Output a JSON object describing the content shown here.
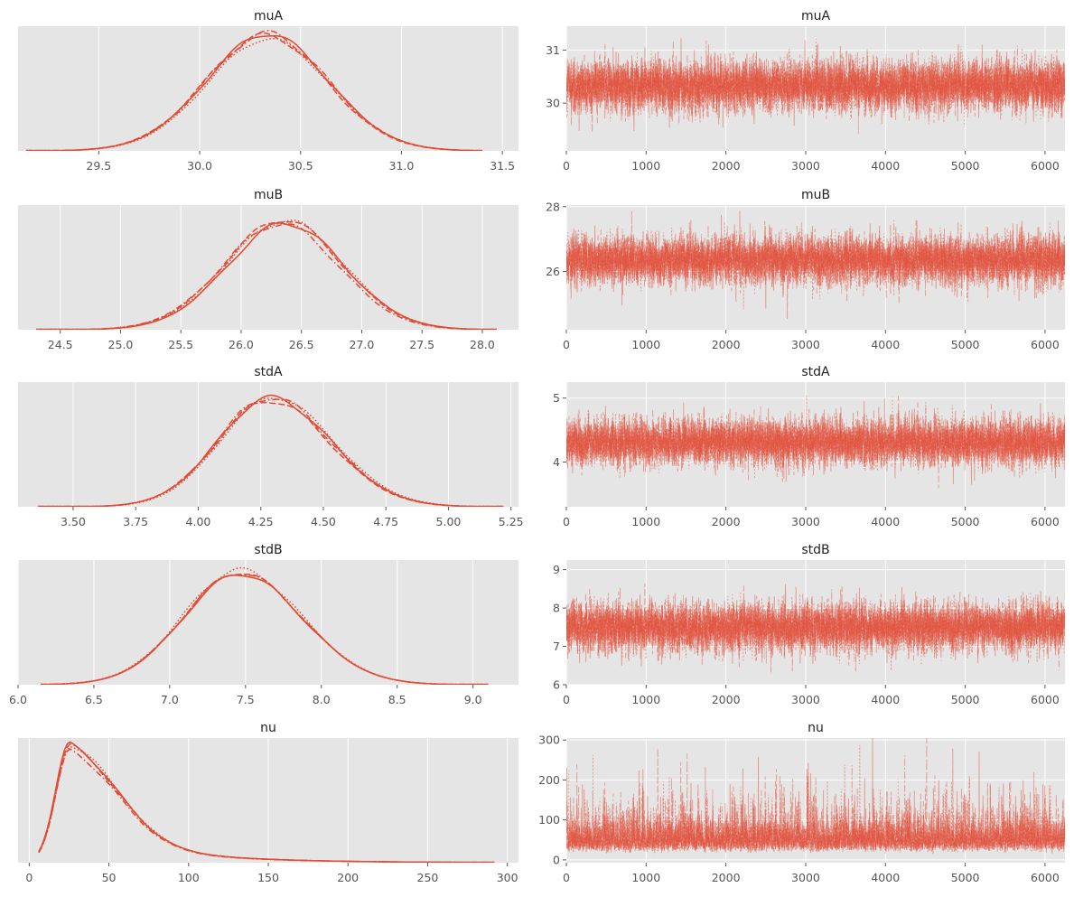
{
  "figure_title": "",
  "colors": {
    "panel_bg": "#e5e5e5",
    "grid": "#ffffff",
    "line": "#e24a33",
    "tick_text": "#555555",
    "title_text": "#222222"
  },
  "line_styles": [
    "solid",
    "dashed",
    "dashdot",
    "dotted"
  ],
  "chart_data": [
    {
      "type": "line",
      "role": "density",
      "title": "muA",
      "xlim": [
        29.1,
        31.58
      ],
      "ylim": [
        0,
        1.05
      ],
      "xticks": [
        29.5,
        30.0,
        30.5,
        31.0,
        31.5
      ],
      "xtick_labels": [
        "29.5",
        "30.0",
        "30.5",
        "31.0",
        "31.5"
      ],
      "yticks": [],
      "xlabel": "",
      "ylabel": "",
      "grid": true,
      "x_range": [
        29.14,
        31.4
      ],
      "mode": 30.33,
      "sd_left": 0.3,
      "sd_right": 0.3,
      "peak": 0.97
    },
    {
      "type": "line",
      "role": "trace",
      "title": "muA",
      "xlim": [
        0,
        6250
      ],
      "ylim": [
        29.1,
        31.45
      ],
      "xticks": [
        0,
        1000,
        2000,
        3000,
        4000,
        5000,
        6000
      ],
      "xtick_labels": [
        "0",
        "1000",
        "2000",
        "3000",
        "4000",
        "5000",
        "6000"
      ],
      "yticks": [
        30,
        31
      ],
      "ytick_labels": [
        "30",
        "31"
      ],
      "xlabel": "",
      "ylabel": "",
      "grid": true,
      "n_draws": 6250,
      "center": 30.33,
      "sd": 0.3,
      "skew": 0
    },
    {
      "type": "line",
      "role": "density",
      "title": "muB",
      "xlim": [
        24.15,
        28.3
      ],
      "ylim": [
        0,
        1.05
      ],
      "xticks": [
        24.5,
        25.0,
        25.5,
        26.0,
        26.5,
        27.0,
        27.5,
        28.0
      ],
      "xtick_labels": [
        "24.5",
        "25.0",
        "25.5",
        "26.0",
        "26.5",
        "27.0",
        "27.5",
        "28.0"
      ],
      "yticks": [],
      "xlabel": "",
      "ylabel": "",
      "grid": true,
      "x_range": [
        24.3,
        28.12
      ],
      "mode": 26.35,
      "sd_left": 0.48,
      "sd_right": 0.48,
      "peak": 0.9
    },
    {
      "type": "line",
      "role": "trace",
      "title": "muB",
      "xlim": [
        0,
        6250
      ],
      "ylim": [
        24.2,
        28.05
      ],
      "xticks": [
        0,
        1000,
        2000,
        3000,
        4000,
        5000,
        6000
      ],
      "xtick_labels": [
        "0",
        "1000",
        "2000",
        "3000",
        "4000",
        "5000",
        "6000"
      ],
      "yticks": [
        26,
        28
      ],
      "ytick_labels": [
        "26",
        "28"
      ],
      "xlabel": "",
      "ylabel": "",
      "grid": true,
      "n_draws": 6250,
      "center": 26.35,
      "sd": 0.48,
      "skew": 0
    },
    {
      "type": "line",
      "role": "density",
      "title": "stdA",
      "xlim": [
        3.28,
        5.28
      ],
      "ylim": [
        0,
        1.05
      ],
      "xticks": [
        3.5,
        3.75,
        4.0,
        4.25,
        4.5,
        4.75,
        5.0,
        5.25
      ],
      "xtick_labels": [
        "3.50",
        "3.75",
        "4.00",
        "4.25",
        "4.50",
        "4.75",
        "5.00",
        "5.25"
      ],
      "yticks": [],
      "xlabel": "",
      "ylabel": "",
      "grid": true,
      "x_range": [
        3.36,
        5.22
      ],
      "mode": 4.29,
      "sd_left": 0.21,
      "sd_right": 0.24,
      "peak": 0.92
    },
    {
      "type": "line",
      "role": "trace",
      "title": "stdA",
      "xlim": [
        0,
        6250
      ],
      "ylim": [
        3.3,
        5.25
      ],
      "xticks": [
        0,
        1000,
        2000,
        3000,
        4000,
        5000,
        6000
      ],
      "xtick_labels": [
        "0",
        "1000",
        "2000",
        "3000",
        "4000",
        "5000",
        "6000"
      ],
      "yticks": [
        4,
        5
      ],
      "ytick_labels": [
        "4",
        "5"
      ],
      "xlabel": "",
      "ylabel": "",
      "grid": true,
      "n_draws": 6250,
      "center": 4.31,
      "sd": 0.23,
      "skew": 0
    },
    {
      "type": "line",
      "role": "density",
      "title": "stdB",
      "xlim": [
        6.0,
        9.3
      ],
      "ylim": [
        0,
        1.05
      ],
      "xticks": [
        6.0,
        6.5,
        7.0,
        7.5,
        8.0,
        8.5,
        9.0
      ],
      "xtick_labels": [
        "6.0",
        "6.5",
        "7.0",
        "7.5",
        "8.0",
        "8.5",
        "9.0"
      ],
      "yticks": [],
      "xlabel": "",
      "ylabel": "",
      "grid": true,
      "x_range": [
        6.15,
        9.1
      ],
      "mode": 7.47,
      "sd_left": 0.37,
      "sd_right": 0.41,
      "peak": 0.95
    },
    {
      "type": "line",
      "role": "trace",
      "title": "stdB",
      "xlim": [
        0,
        6250
      ],
      "ylim": [
        6.0,
        9.25
      ],
      "xticks": [
        0,
        1000,
        2000,
        3000,
        4000,
        5000,
        6000
      ],
      "xtick_labels": [
        "0",
        "1000",
        "2000",
        "3000",
        "4000",
        "5000",
        "6000"
      ],
      "yticks": [
        6,
        7,
        8,
        9
      ],
      "ytick_labels": [
        "6",
        "7",
        "8",
        "9"
      ],
      "xlabel": "",
      "ylabel": "",
      "grid": true,
      "n_draws": 6250,
      "center": 7.5,
      "sd": 0.4,
      "skew": 0
    },
    {
      "type": "line",
      "role": "density",
      "title": "nu",
      "xlim": [
        -7,
        307
      ],
      "ylim": [
        0,
        1.05
      ],
      "xticks": [
        0,
        50,
        100,
        150,
        200,
        250,
        300
      ],
      "xtick_labels": [
        "0",
        "50",
        "100",
        "150",
        "200",
        "250",
        "300"
      ],
      "yticks": [],
      "xlabel": "",
      "ylabel": "",
      "grid": true,
      "x_range": [
        6,
        292
      ],
      "mode": 26,
      "sd_left": 9,
      "sd_right": 30,
      "peak": 0.98
    },
    {
      "type": "line",
      "role": "trace",
      "title": "nu",
      "xlim": [
        0,
        6250
      ],
      "ylim": [
        -7,
        305
      ],
      "xticks": [
        0,
        1000,
        2000,
        3000,
        4000,
        5000,
        6000
      ],
      "xtick_labels": [
        "0",
        "1000",
        "2000",
        "3000",
        "4000",
        "5000",
        "6000"
      ],
      "yticks": [
        0,
        100,
        200,
        300
      ],
      "ytick_labels": [
        "0",
        "100",
        "200",
        "300"
      ],
      "xlabel": "",
      "ylabel": "",
      "grid": true,
      "n_draws": 6250,
      "center": 45,
      "sd": 32,
      "skew": 1,
      "floor": 8
    }
  ]
}
